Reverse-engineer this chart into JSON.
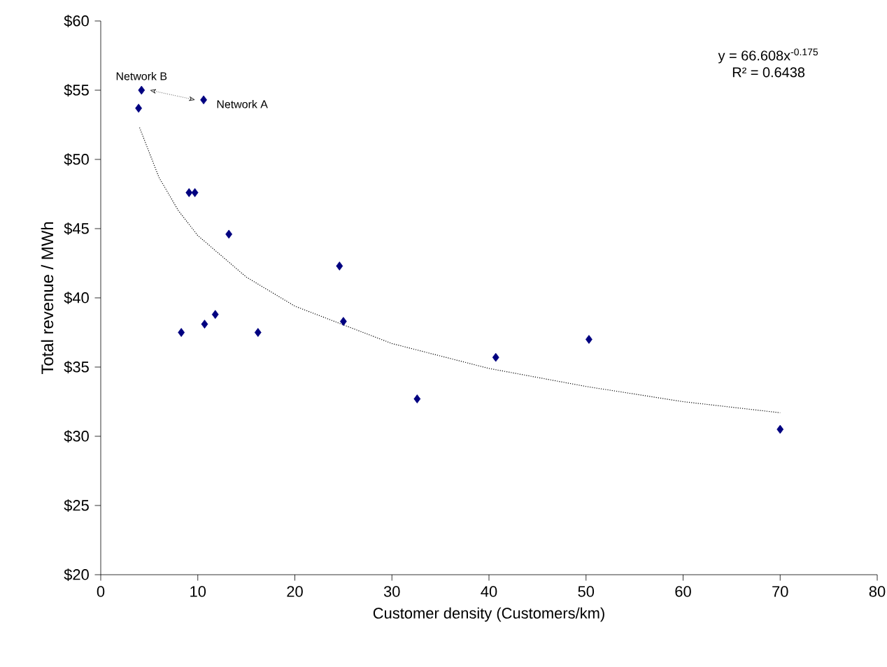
{
  "chart_data": {
    "type": "scatter",
    "xlabel": "Customer density (Customers/km)",
    "ylabel": "Total revenue / MWh",
    "xlim": [
      0,
      80
    ],
    "xticks": [
      0,
      10,
      20,
      30,
      40,
      50,
      60,
      70,
      80
    ],
    "ylim": [
      20,
      60
    ],
    "yticks": [
      {
        "value": 20,
        "label": "$20"
      },
      {
        "value": 25,
        "label": "$25"
      },
      {
        "value": 30,
        "label": "$30"
      },
      {
        "value": 35,
        "label": "$35"
      },
      {
        "value": 40,
        "label": "$40"
      },
      {
        "value": 45,
        "label": "$45"
      },
      {
        "value": 50,
        "label": "$50"
      },
      {
        "value": 55,
        "label": "$55"
      },
      {
        "value": 60,
        "label": "$60"
      }
    ],
    "grid": false,
    "series": [
      {
        "color": "#000080",
        "marker": "diamond",
        "x": [
          4.2,
          10.6,
          3.9,
          9.1,
          9.7,
          13.2,
          24.6,
          25.0,
          8.3,
          10.7,
          11.8,
          16.2,
          32.6,
          40.7,
          50.3,
          70.0
        ],
        "values": [
          55.0,
          54.3,
          53.7,
          47.6,
          47.6,
          44.6,
          42.3,
          38.3,
          37.5,
          38.1,
          38.8,
          37.5,
          32.7,
          35.7,
          37.0,
          30.5
        ]
      },
      {
        "type": "line",
        "color": "#000000",
        "line_style": "dotted",
        "marker": "none",
        "x": [
          4,
          6,
          8,
          10,
          15,
          20,
          30,
          40,
          50,
          60,
          70
        ],
        "values": [
          52.3,
          48.7,
          46.3,
          44.5,
          41.5,
          39.4,
          36.7,
          34.9,
          33.6,
          32.5,
          31.7
        ]
      }
    ],
    "annotations": [
      {
        "text": "Network B",
        "x": 4.2,
        "y": 55.0
      },
      {
        "text": "Network A",
        "x": 10.6,
        "y": 54.3
      },
      "y = 66.608x$^{-0.175}$",
      "R² = 0.6438"
    ]
  }
}
